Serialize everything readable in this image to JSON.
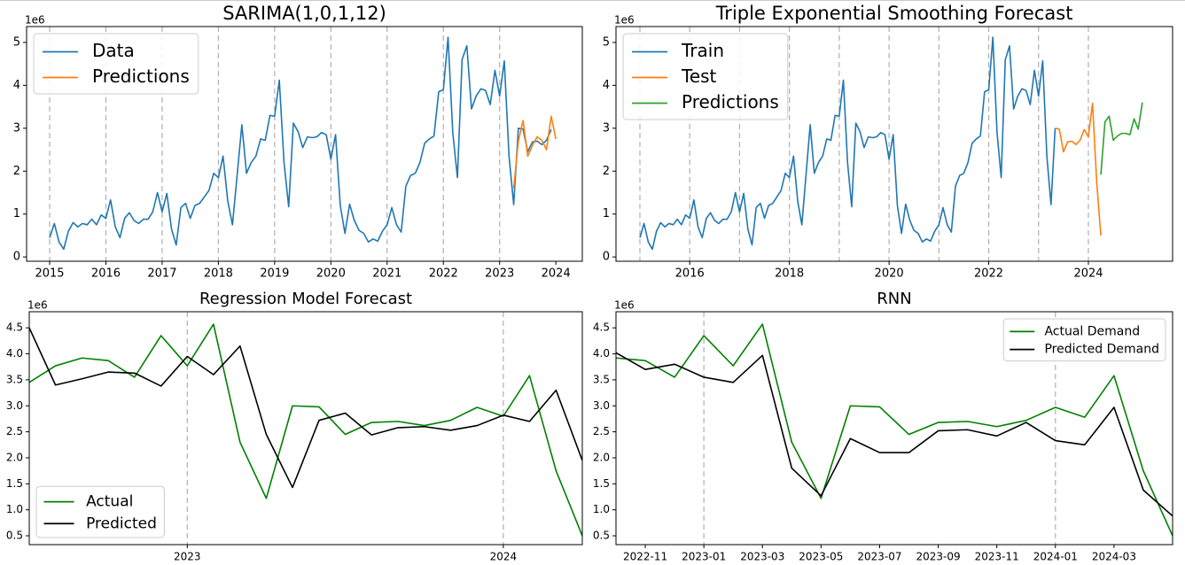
{
  "chart_data": [
    {
      "type": "line",
      "title": "SARIMA(1,0,1,12)",
      "y_offset_label": "1e6",
      "legend_loc": "upper left",
      "xlim": [
        2014.59,
        2024.47
      ],
      "ylim": [
        -0.1,
        5.37
      ],
      "xticks": [
        2015,
        2016,
        2017,
        2018,
        2019,
        2020,
        2021,
        2022,
        2023,
        2024
      ],
      "yticks": [
        0,
        1,
        2,
        3,
        4,
        5
      ],
      "vlines": [
        2015,
        2016,
        2017,
        2018,
        2019,
        2020,
        2021,
        2022,
        2023
      ],
      "series": [
        {
          "name": "Data",
          "color": "#1f77b4",
          "x": [
            2015,
            2015.083,
            2015.167,
            2015.25,
            2015.333,
            2015.417,
            2015.5,
            2015.583,
            2015.667,
            2015.75,
            2015.833,
            2015.917,
            2016,
            2016.083,
            2016.167,
            2016.25,
            2016.333,
            2016.417,
            2016.5,
            2016.583,
            2016.667,
            2016.75,
            2016.833,
            2016.917,
            2017,
            2017.083,
            2017.167,
            2017.25,
            2017.333,
            2017.417,
            2017.5,
            2017.583,
            2017.667,
            2017.75,
            2017.833,
            2017.917,
            2018,
            2018.083,
            2018.167,
            2018.25,
            2018.333,
            2018.417,
            2018.5,
            2018.583,
            2018.667,
            2018.75,
            2018.833,
            2018.917,
            2019,
            2019.083,
            2019.167,
            2019.25,
            2019.333,
            2019.417,
            2019.5,
            2019.583,
            2019.667,
            2019.75,
            2019.833,
            2019.917,
            2020,
            2020.083,
            2020.167,
            2020.25,
            2020.333,
            2020.417,
            2020.5,
            2020.583,
            2020.667,
            2020.75,
            2020.833,
            2020.917,
            2021,
            2021.083,
            2021.167,
            2021.25,
            2021.333,
            2021.417,
            2021.5,
            2021.583,
            2021.667,
            2021.75,
            2021.833,
            2021.917,
            2022,
            2022.083,
            2022.167,
            2022.25,
            2022.333,
            2022.417,
            2022.5,
            2022.583,
            2022.667,
            2022.75,
            2022.833,
            2022.917,
            2023,
            2023.083,
            2023.167,
            2023.25,
            2023.333,
            2023.417,
            2023.5,
            2023.583,
            2023.667,
            2023.75,
            2023.833,
            2023.917
          ],
          "values": [
            0.45,
            0.78,
            0.35,
            0.18,
            0.6,
            0.8,
            0.7,
            0.78,
            0.75,
            0.88,
            0.75,
            0.98,
            0.9,
            1.33,
            0.7,
            0.45,
            0.9,
            1.03,
            0.85,
            0.78,
            0.88,
            0.88,
            1.05,
            1.5,
            1.05,
            1.48,
            0.65,
            0.28,
            1.15,
            1.25,
            0.9,
            1.2,
            1.25,
            1.4,
            1.55,
            1.95,
            1.85,
            2.35,
            1.3,
            0.75,
            1.9,
            3.08,
            1.95,
            2.2,
            2.35,
            2.75,
            2.72,
            3.3,
            3.28,
            4.12,
            2.2,
            1.17,
            3.12,
            2.92,
            2.55,
            2.8,
            2.78,
            2.8,
            2.9,
            2.85,
            2.28,
            2.85,
            1.2,
            0.55,
            1.23,
            0.85,
            0.62,
            0.55,
            0.35,
            0.42,
            0.37,
            0.6,
            0.75,
            1.15,
            0.75,
            0.58,
            1.65,
            1.9,
            1.95,
            2.2,
            2.65,
            2.75,
            2.82,
            3.85,
            3.9,
            5.12,
            2.9,
            1.85,
            4.6,
            4.92,
            3.45,
            3.75,
            3.92,
            3.88,
            3.55,
            4.35,
            3.75,
            4.57,
            2.35,
            1.22,
            3.0,
            2.98,
            2.45,
            2.68,
            2.7,
            2.62,
            2.72,
            2.97
          ]
        },
        {
          "name": "Predictions",
          "color": "#ff7f0e",
          "x": [
            2023.25,
            2023.333,
            2023.417,
            2023.5,
            2023.583,
            2023.667,
            2023.75,
            2023.833,
            2023.917,
            2024
          ],
          "values": [
            1.6,
            2.7,
            3.18,
            2.35,
            2.6,
            2.8,
            2.72,
            2.5,
            3.28,
            2.75
          ]
        }
      ]
    },
    {
      "type": "line",
      "title": "Triple Exponential Smoothing Forecast",
      "y_offset_label": "1e6",
      "legend_loc": "upper left",
      "xlim": [
        2014.52,
        2025.69
      ],
      "ylim": [
        -0.1,
        5.37
      ],
      "xticks": [
        2016,
        2018,
        2020,
        2022,
        2024
      ],
      "yticks": [
        0,
        1,
        2,
        3,
        4,
        5
      ],
      "vlines": [
        2015,
        2016,
        2017,
        2018,
        2019,
        2020,
        2021,
        2022,
        2023,
        2024
      ],
      "series": [
        {
          "name": "Train",
          "color": "#1f77b4",
          "x": [
            2015,
            2015.083,
            2015.167,
            2015.25,
            2015.333,
            2015.417,
            2015.5,
            2015.583,
            2015.667,
            2015.75,
            2015.833,
            2015.917,
            2016,
            2016.083,
            2016.167,
            2016.25,
            2016.333,
            2016.417,
            2016.5,
            2016.583,
            2016.667,
            2016.75,
            2016.833,
            2016.917,
            2017,
            2017.083,
            2017.167,
            2017.25,
            2017.333,
            2017.417,
            2017.5,
            2017.583,
            2017.667,
            2017.75,
            2017.833,
            2017.917,
            2018,
            2018.083,
            2018.167,
            2018.25,
            2018.333,
            2018.417,
            2018.5,
            2018.583,
            2018.667,
            2018.75,
            2018.833,
            2018.917,
            2019,
            2019.083,
            2019.167,
            2019.25,
            2019.333,
            2019.417,
            2019.5,
            2019.583,
            2019.667,
            2019.75,
            2019.833,
            2019.917,
            2020,
            2020.083,
            2020.167,
            2020.25,
            2020.333,
            2020.417,
            2020.5,
            2020.583,
            2020.667,
            2020.75,
            2020.833,
            2020.917,
            2021,
            2021.083,
            2021.167,
            2021.25,
            2021.333,
            2021.417,
            2021.5,
            2021.583,
            2021.667,
            2021.75,
            2021.833,
            2021.917,
            2022,
            2022.083,
            2022.167,
            2022.25,
            2022.333,
            2022.417,
            2022.5,
            2022.583,
            2022.667,
            2022.75,
            2022.833,
            2022.917,
            2023,
            2023.083,
            2023.167,
            2023.25,
            2023.333
          ],
          "values": [
            0.45,
            0.78,
            0.35,
            0.18,
            0.6,
            0.8,
            0.7,
            0.78,
            0.75,
            0.88,
            0.75,
            0.98,
            0.9,
            1.33,
            0.7,
            0.45,
            0.9,
            1.03,
            0.85,
            0.78,
            0.88,
            0.88,
            1.05,
            1.5,
            1.05,
            1.48,
            0.65,
            0.28,
            1.15,
            1.25,
            0.9,
            1.2,
            1.25,
            1.4,
            1.55,
            1.95,
            1.85,
            2.35,
            1.3,
            0.75,
            1.9,
            3.08,
            1.95,
            2.2,
            2.35,
            2.75,
            2.72,
            3.3,
            3.28,
            4.12,
            2.2,
            1.17,
            3.12,
            2.92,
            2.55,
            2.8,
            2.78,
            2.8,
            2.9,
            2.85,
            2.28,
            2.85,
            1.2,
            0.55,
            1.23,
            0.85,
            0.62,
            0.55,
            0.35,
            0.42,
            0.37,
            0.6,
            0.75,
            1.15,
            0.75,
            0.58,
            1.65,
            1.9,
            1.95,
            2.2,
            2.65,
            2.75,
            2.82,
            3.85,
            3.9,
            5.12,
            2.9,
            1.85,
            4.6,
            4.92,
            3.45,
            3.75,
            3.92,
            3.88,
            3.55,
            4.35,
            3.75,
            4.57,
            2.35,
            1.22,
            3.0
          ]
        },
        {
          "name": "Test",
          "color": "#ff7f0e",
          "x": [
            2023.333,
            2023.417,
            2023.5,
            2023.583,
            2023.667,
            2023.75,
            2023.833,
            2023.917,
            2024,
            2024.083,
            2024.167,
            2024.25
          ],
          "values": [
            3.0,
            2.98,
            2.45,
            2.68,
            2.7,
            2.62,
            2.72,
            2.97,
            2.8,
            3.58,
            1.75,
            0.5
          ]
        },
        {
          "name": "Predictions",
          "color": "#2ca02c",
          "x": [
            2024.25,
            2024.333,
            2024.417,
            2024.5,
            2024.583,
            2024.667,
            2024.75,
            2024.833,
            2024.917,
            2025,
            2025.083
          ],
          "values": [
            1.92,
            3.15,
            3.28,
            2.72,
            2.82,
            2.88,
            2.88,
            2.85,
            3.22,
            2.98,
            3.6
          ]
        }
      ]
    },
    {
      "type": "line",
      "title": "Regression Model Forecast",
      "y_offset_label": "1e6",
      "legend_loc": "lower left",
      "xlim": [
        2022.5,
        2024.25
      ],
      "ylim": [
        0.33,
        4.81
      ],
      "xticks": [
        2023,
        2024
      ],
      "yticks": [
        0.5,
        {
          "value": 1,
          "label": "1.0"
        },
        1.5,
        {
          "value": 2,
          "label": "2.0"
        },
        2.5,
        {
          "value": 3,
          "label": "3.0"
        },
        3.5,
        {
          "value": 4,
          "label": "4.0"
        },
        4.5
      ],
      "vlines": [
        2023,
        2024
      ],
      "series": [
        {
          "name": "Actual",
          "color": "#008000",
          "x": [
            2022.5,
            2022.583,
            2022.667,
            2022.75,
            2022.833,
            2022.917,
            2023,
            2023.083,
            2023.167,
            2023.25,
            2023.333,
            2023.417,
            2023.5,
            2023.583,
            2023.667,
            2023.75,
            2023.833,
            2023.917,
            2024,
            2024.083,
            2024.167,
            2024.25
          ],
          "values": [
            3.45,
            3.77,
            3.92,
            3.87,
            3.55,
            4.35,
            3.77,
            4.57,
            2.3,
            1.22,
            3.0,
            2.98,
            2.45,
            2.68,
            2.7,
            2.62,
            2.72,
            2.97,
            2.8,
            3.58,
            1.75,
            0.5
          ]
        },
        {
          "name": "Predicted",
          "color": "#000000",
          "x": [
            2022.5,
            2022.583,
            2022.667,
            2022.75,
            2022.833,
            2022.917,
            2023,
            2023.083,
            2023.167,
            2023.25,
            2023.333,
            2023.417,
            2023.5,
            2023.583,
            2023.667,
            2023.75,
            2023.833,
            2023.917,
            2024,
            2024.083,
            2024.167,
            2024.25
          ],
          "values": [
            4.5,
            3.4,
            3.52,
            3.65,
            3.63,
            3.38,
            3.95,
            3.6,
            4.15,
            2.45,
            1.43,
            2.72,
            2.86,
            2.44,
            2.58,
            2.6,
            2.53,
            2.62,
            2.82,
            2.7,
            3.3,
            1.95
          ]
        }
      ]
    },
    {
      "type": "line",
      "title": "RNN",
      "y_offset_label": "1e6",
      "legend_loc": "upper right",
      "categories": [
        null,
        "2022-11",
        null,
        "2023-01",
        null,
        "2023-03",
        null,
        "2023-05",
        null,
        "2023-07",
        null,
        "2023-09",
        null,
        "2023-11",
        null,
        "2024-01",
        null,
        "2024-03",
        null,
        null
      ],
      "ylim": [
        0.33,
        4.81
      ],
      "yticks": [
        0.5,
        {
          "value": 1,
          "label": "1.0"
        },
        1.5,
        {
          "value": 2,
          "label": "2.0"
        },
        2.5,
        {
          "value": 3,
          "label": "3.0"
        },
        3.5,
        {
          "value": 4,
          "label": "4.0"
        },
        4.5
      ],
      "vlines": [
        "2023-01",
        "2024-01"
      ],
      "series": [
        {
          "name": "Actual Demand",
          "color": "#008000",
          "values": [
            3.92,
            3.87,
            3.55,
            4.35,
            3.77,
            4.57,
            2.3,
            1.22,
            3.0,
            2.98,
            2.45,
            2.68,
            2.7,
            2.6,
            2.72,
            2.97,
            2.78,
            3.58,
            1.75,
            0.5
          ]
        },
        {
          "name": "Predicted Demand",
          "color": "#000000",
          "values": [
            4.02,
            3.7,
            3.8,
            3.55,
            3.45,
            3.97,
            1.8,
            1.27,
            2.37,
            2.1,
            2.1,
            2.52,
            2.54,
            2.42,
            2.68,
            2.33,
            2.25,
            2.97,
            1.38,
            0.88
          ]
        }
      ]
    }
  ]
}
